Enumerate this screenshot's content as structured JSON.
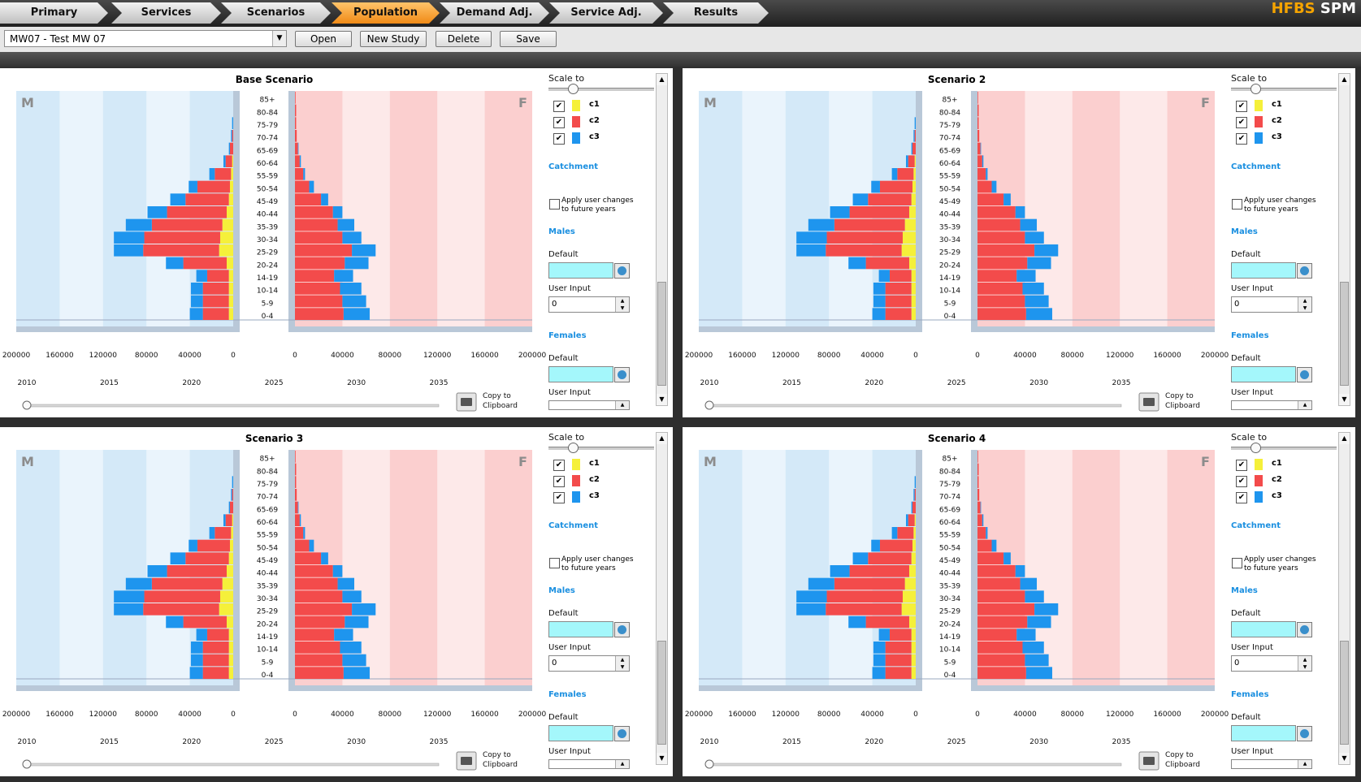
{
  "brand": {
    "part1": "HFBS",
    "part2": "SPM"
  },
  "nav": {
    "tabs": [
      {
        "label": "Primary"
      },
      {
        "label": "Services"
      },
      {
        "label": "Scenarios"
      },
      {
        "label": "Population",
        "active": true
      },
      {
        "label": "Demand Adj."
      },
      {
        "label": "Service Adj."
      },
      {
        "label": "Results"
      }
    ]
  },
  "toolbar": {
    "study": "MW07 - Test MW 07",
    "open": "Open",
    "new_study": "New Study",
    "delete": "Delete",
    "save": "Save"
  },
  "common": {
    "age_groups": [
      "85+",
      "80-84",
      "75-79",
      "70-74",
      "65-69",
      "60-64",
      "55-59",
      "50-54",
      "45-49",
      "40-44",
      "35-39",
      "30-34",
      "25-29",
      "20-24",
      "14-19",
      "10-14",
      "5-9",
      "0-4"
    ],
    "male_ticks": [
      "200000",
      "160000",
      "120000",
      "80000",
      "40000",
      "0"
    ],
    "female_ticks": [
      "0",
      "40000",
      "80000",
      "120000",
      "160000",
      "200000"
    ],
    "year_ticks": [
      "2010",
      "2015",
      "2020",
      "2025",
      "2030",
      "2035"
    ],
    "male_letter": "M",
    "female_letter": "F",
    "copy_label_1": "Copy to",
    "copy_label_2": "Clipboard",
    "scale_to": "Scale to",
    "catchment": "Catchment",
    "apply_1": "Apply user changes",
    "apply_2": "to future years",
    "males": "Males",
    "females": "Females",
    "default": "Default",
    "user_input": "User Input",
    "user_input_value": "0",
    "series": [
      {
        "name": "c1",
        "color": "#f5f03a"
      },
      {
        "name": "c2",
        "color": "#f34b4b"
      },
      {
        "name": "c3",
        "color": "#1e95ee"
      }
    ]
  },
  "scenarios": [
    {
      "title": "Base Scenario"
    },
    {
      "title": "Scenario 2"
    },
    {
      "title": "Scenario 3"
    },
    {
      "title": "Scenario 4"
    }
  ],
  "chart_data": {
    "type": "bar",
    "orientation": "horizontal population pyramid",
    "categories": [
      "85+",
      "80-84",
      "75-79",
      "70-74",
      "65-69",
      "60-64",
      "55-59",
      "50-54",
      "45-49",
      "40-44",
      "35-39",
      "30-34",
      "25-29",
      "20-24",
      "14-19",
      "10-14",
      "5-9",
      "0-4"
    ],
    "male": {
      "xlim": [
        200000,
        0
      ],
      "series": [
        {
          "name": "c1",
          "values": [
            0,
            0,
            0,
            0,
            0,
            1000,
            2000,
            3000,
            4000,
            6000,
            10000,
            12000,
            13000,
            6000,
            4000,
            4000,
            4000,
            4000
          ]
        },
        {
          "name": "c2",
          "values": [
            0,
            0,
            0,
            1000,
            3000,
            6000,
            15000,
            30000,
            40000,
            55000,
            65000,
            70000,
            70000,
            40000,
            20000,
            24000,
            24000,
            24000
          ]
        },
        {
          "name": "c3",
          "values": [
            0,
            0,
            1000,
            1000,
            1000,
            2000,
            5000,
            8000,
            14000,
            18000,
            24000,
            28000,
            27000,
            16000,
            10000,
            11000,
            11000,
            12000
          ]
        }
      ]
    },
    "female": {
      "xlim": [
        0,
        200000
      ],
      "series": [
        {
          "name": "c1",
          "values": [
            0,
            0,
            0,
            0,
            0,
            0,
            0,
            0,
            0,
            0,
            0,
            0,
            0,
            0,
            0,
            0,
            0,
            0
          ]
        },
        {
          "name": "c2",
          "values": [
            500,
            1000,
            1000,
            1500,
            2500,
            4000,
            7000,
            12000,
            22000,
            32000,
            36000,
            40000,
            48000,
            42000,
            33000,
            38000,
            40000,
            41000
          ]
        },
        {
          "name": "c3",
          "values": [
            0,
            0,
            0,
            0,
            500,
            1000,
            1500,
            4000,
            6000,
            8000,
            14000,
            16000,
            20000,
            20000,
            16000,
            18000,
            20000,
            22000
          ]
        }
      ]
    },
    "year_slider": {
      "range": [
        2010,
        2035
      ],
      "value": 2010
    }
  }
}
